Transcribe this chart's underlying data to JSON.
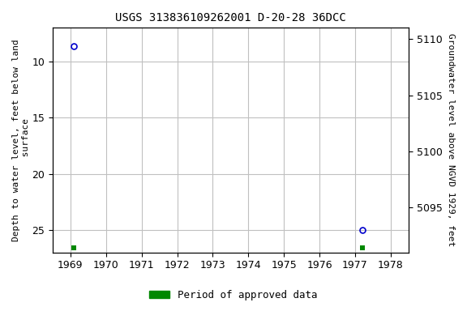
{
  "title": "USGS 313836109262001 D-20-28 36DCC",
  "ylabel_left": "Depth to water level, feet below land\n surface",
  "ylabel_right": "Groundwater level above NGVD 1929, feet",
  "xlim": [
    1968.5,
    1978.5
  ],
  "ylim_left_top": 7,
  "ylim_left_bottom": 27,
  "ylim_right_top": 5111,
  "ylim_right_bottom": 5091,
  "xticks": [
    1969,
    1970,
    1971,
    1972,
    1973,
    1974,
    1975,
    1976,
    1977,
    1978
  ],
  "yticks_left": [
    10,
    15,
    20,
    25
  ],
  "yticks_right": [
    5095,
    5100,
    5105,
    5110
  ],
  "data_points": [
    {
      "x": 1969.1,
      "y_left": 8.6
    },
    {
      "x": 1977.2,
      "y_left": 25.0
    }
  ],
  "green_markers": [
    {
      "x": 1969.1
    },
    {
      "x": 1977.2
    }
  ],
  "legend_label": "Period of approved data",
  "legend_color": "#008800",
  "point_color": "#0000cc",
  "background_color": "#ffffff",
  "grid_color": "#c0c0c0",
  "title_fontsize": 10,
  "axis_label_fontsize": 8,
  "tick_fontsize": 9,
  "marker_size": 5,
  "font_family": "monospace"
}
